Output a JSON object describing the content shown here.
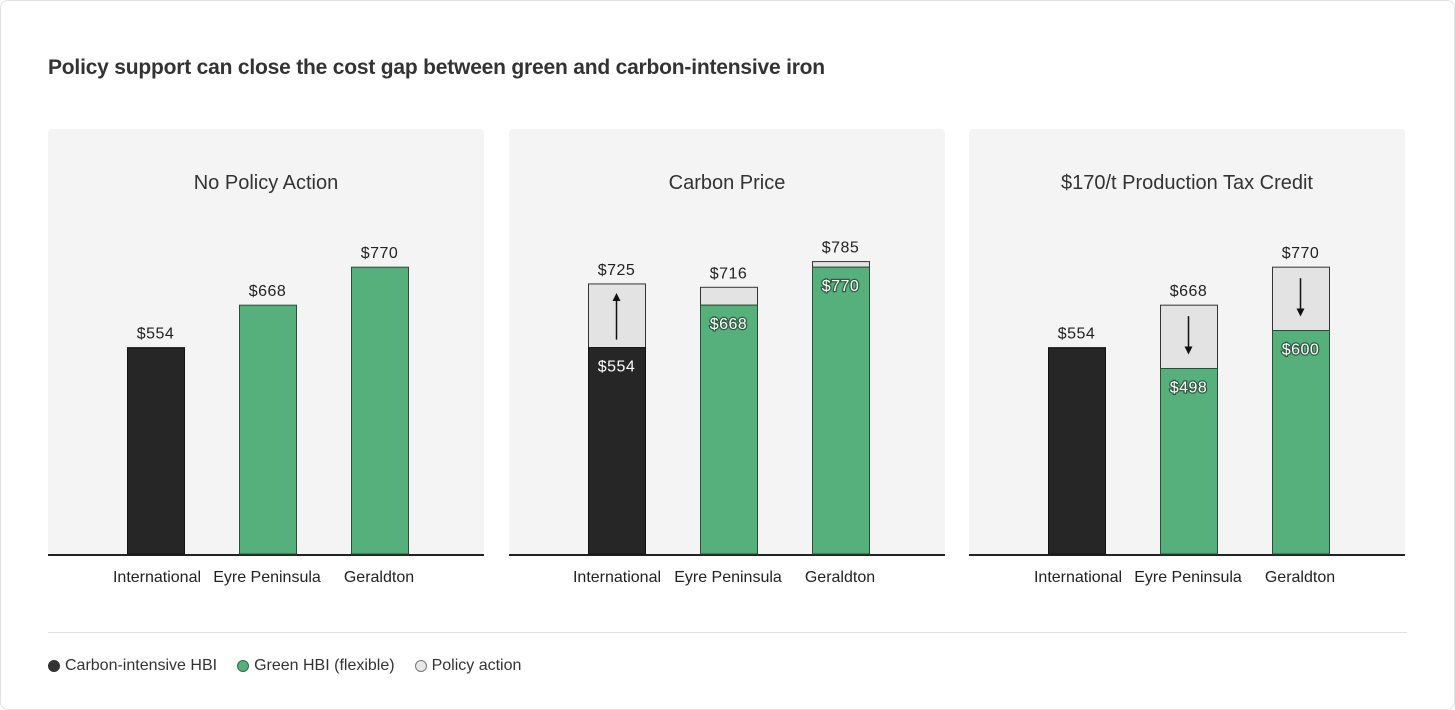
{
  "title": "Policy support can close the cost gap between green and carbon-intensive iron",
  "colors": {
    "carbon": "#262626",
    "green": "#56b07b",
    "policy": "#e3e3e3",
    "panel": "#f4f4f4"
  },
  "legend": [
    {
      "label": "Carbon-intensive HBI",
      "color": "#333333",
      "stroke": "#333333"
    },
    {
      "label": "Green HBI (flexible)",
      "color": "#56b07b",
      "stroke": "#2f6b48"
    },
    {
      "label": "Policy action",
      "color": "#e8e8e8",
      "stroke": "#777777"
    }
  ],
  "chart_data": [
    {
      "type": "bar",
      "title": "No Policy Action",
      "categories": [
        "International",
        "Eyre Peninsula",
        "Geraldton"
      ],
      "base_values": [
        554,
        668,
        770
      ],
      "base_types": [
        "carbon",
        "green",
        "green"
      ],
      "policy_values": [
        null,
        null,
        null
      ],
      "arrows": [
        null,
        null,
        null
      ],
      "top_labels": [
        "$554",
        "$668",
        "$770"
      ],
      "inner_labels": [
        null,
        null,
        null
      ],
      "ylim": [
        0,
        850
      ]
    },
    {
      "type": "bar",
      "title": "Carbon Price",
      "categories": [
        "International",
        "Eyre Peninsula",
        "Geraldton"
      ],
      "base_values": [
        554,
        668,
        770
      ],
      "base_types": [
        "carbon",
        "green",
        "green"
      ],
      "policy_values": [
        725,
        716,
        785
      ],
      "arrows": [
        "up",
        null,
        null
      ],
      "top_labels": [
        "$725",
        "$716",
        "$785"
      ],
      "inner_labels": [
        "$554",
        "$668",
        "$770"
      ],
      "ylim": [
        0,
        850
      ]
    },
    {
      "type": "bar",
      "title": "$170/t Production Tax Credit",
      "categories": [
        "International",
        "Eyre Peninsula",
        "Geraldton"
      ],
      "base_values": [
        554,
        498,
        600
      ],
      "base_types": [
        "carbon",
        "green",
        "green"
      ],
      "policy_values": [
        null,
        668,
        770
      ],
      "arrows": [
        null,
        "down",
        "down"
      ],
      "top_labels": [
        "$554",
        "$668",
        "$770"
      ],
      "inner_labels": [
        null,
        "$498",
        "$600"
      ],
      "ylim": [
        0,
        850
      ]
    }
  ]
}
